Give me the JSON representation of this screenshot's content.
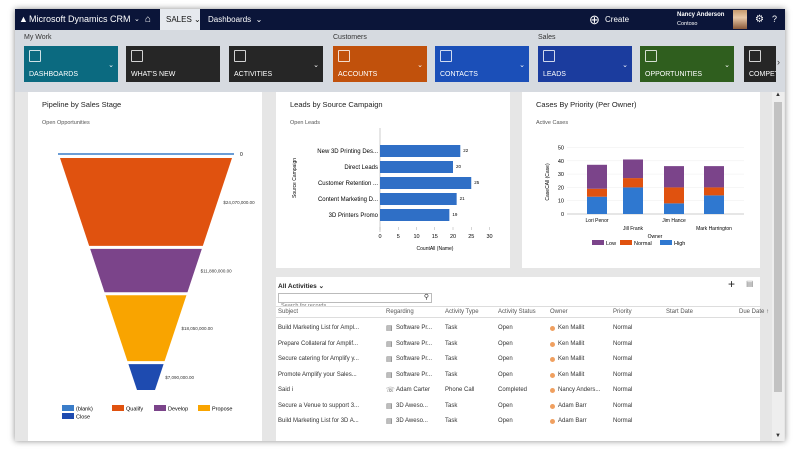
{
  "topnav": {
    "app_title": "Microsoft Dynamics CRM",
    "area": "SALES",
    "section": "Dashboards",
    "create_label": "Create",
    "user_name": "Nancy Anderson",
    "org": "Contoso",
    "help": "?"
  },
  "subnav": {
    "groups": [
      "My Work",
      "Customers",
      "Sales"
    ],
    "tiles": [
      {
        "label": "DASHBOARDS",
        "color": "#0b6a80"
      },
      {
        "label": "WHAT'S NEW",
        "color": "#262626"
      },
      {
        "label": "ACTIVITIES",
        "color": "#262626"
      },
      {
        "label": "ACCOUNTS",
        "color": "#c1510c"
      },
      {
        "label": "CONTACTS",
        "color": "#1b4fb8"
      },
      {
        "label": "LEADS",
        "color": "#1b3c9e"
      },
      {
        "label": "OPPORTUNITIES",
        "color": "#2f5e1e"
      },
      {
        "label": "COMPETITORS",
        "color": "#262626"
      }
    ]
  },
  "pipeline": {
    "title": "Pipeline by Sales Stage",
    "subtitle": "Open Opportunities"
  },
  "leads": {
    "title": "Leads by Source Campaign",
    "subtitle": "Open Leads"
  },
  "cases": {
    "title": "Cases By Priority (Per Owner)",
    "subtitle": "Active Cases"
  },
  "chart_data": [
    {
      "type": "funnel",
      "title": "Pipeline by Sales Stage",
      "subtitle": "Open Opportunities",
      "categories": [
        "(blank)",
        "Qualify",
        "Develop",
        "Propose",
        "Close"
      ],
      "values": [
        0,
        24070000,
        11880000,
        18050000,
        7090000
      ],
      "labels": [
        "0",
        "$24,070,000.00",
        "$11,880,000.00",
        "$18,050,000.00",
        "$7,090,000.00"
      ],
      "colors": [
        "#3a7dc9",
        "#e0520f",
        "#7b448a",
        "#f9a400",
        "#1e4bb0"
      ],
      "legend": "bottom"
    },
    {
      "type": "bar",
      "orientation": "horizontal",
      "title": "Leads by Source Campaign",
      "subtitle": "Open Leads",
      "categories": [
        "New 3D Printing Des...",
        "Direct Leads",
        "Customer Retention ...",
        "Content Marketing D...",
        "3D Printers Promo"
      ],
      "values": [
        22,
        20,
        25,
        21,
        19
      ],
      "xlabel": "CountAll (Name)",
      "ylabel": "Source Campaign",
      "xlim": [
        0,
        30
      ],
      "xticks": [
        0,
        5,
        10,
        15,
        20,
        25,
        30
      ],
      "color": "#2f6fc6"
    },
    {
      "type": "bar",
      "stacked": true,
      "title": "Cases By Priority (Per Owner)",
      "subtitle": "Active Cases",
      "categories": [
        "Lori Penor",
        "Jill Frank",
        "Jim Hance",
        "Mark Harrington"
      ],
      "series": [
        {
          "name": "High",
          "values": [
            13,
            20,
            8,
            14
          ],
          "color": "#2f78d0"
        },
        {
          "name": "Normal",
          "values": [
            6,
            7,
            12,
            6
          ],
          "color": "#e0520f"
        },
        {
          "name": "Low",
          "values": [
            18,
            14,
            16,
            16
          ],
          "color": "#7b448a"
        }
      ],
      "legend_order": [
        "Low",
        "Normal",
        "High"
      ],
      "xlabel": "Owner",
      "ylabel": "CaseCAll (Case)",
      "ylim": [
        0,
        50
      ],
      "yticks": [
        0,
        10,
        20,
        30,
        40,
        50
      ],
      "grid": true,
      "legend": "bottom"
    }
  ],
  "activities": {
    "view": "All Activities",
    "search_placeholder": "Search for records",
    "columns": [
      "Subject",
      "Regarding",
      "Activity Type",
      "Activity Status",
      "Owner",
      "Priority",
      "Start Date",
      "Due Date ↑"
    ],
    "rows": [
      [
        "Build Marketing List for Ampl...",
        "Software Pr...",
        "Task",
        "Open",
        "Ken Mallit",
        "Normal"
      ],
      [
        "Prepare Collateral for Amplif...",
        "Software Pr...",
        "Task",
        "Open",
        "Ken Mallit",
        "Normal"
      ],
      [
        "Secure catering for Amplify y...",
        "Software Pr...",
        "Task",
        "Open",
        "Ken Mallit",
        "Normal"
      ],
      [
        "Promote Amplify your Sales...",
        "Software Pr...",
        "Task",
        "Open",
        "Ken Mallit",
        "Normal"
      ],
      [
        "Said i",
        "Adam Carter",
        "Phone Call",
        "Completed",
        "Nancy Anders...",
        "Normal"
      ],
      [
        "Secure a Venue to support 3...",
        "3D Aweso...",
        "Task",
        "Open",
        "Adam Barr",
        "Normal"
      ],
      [
        "Build Marketing List for 3D A...",
        "3D Aweso...",
        "Task",
        "Open",
        "Adam Barr",
        "Normal"
      ]
    ]
  }
}
